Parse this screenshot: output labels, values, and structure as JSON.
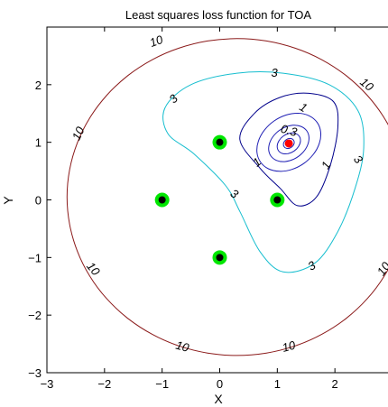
{
  "chart_data": {
    "type": "contour",
    "title": "Least squares loss function for TOA",
    "xlabel": "X",
    "ylabel": "Y",
    "xlim": [
      -3,
      3
    ],
    "ylim": [
      -3,
      3
    ],
    "xticks": [
      "−3",
      "−2",
      "−1",
      "0",
      "1",
      "2"
    ],
    "yticks": [
      "−3",
      "−2",
      "−1",
      "0",
      "1",
      "2"
    ],
    "grid": false,
    "anchors": {
      "x": [
        0,
        -1,
        1,
        0
      ],
      "y": [
        1,
        0,
        0,
        -1
      ],
      "marker_fill": "#000000",
      "marker_edge": "#00e600"
    },
    "estimate": {
      "x": 1.2,
      "y": 0.98,
      "color": "#ff0000"
    },
    "contour_levels": [
      {
        "level": "10",
        "color": "#8b1a1a"
      },
      {
        "level": "3",
        "color": "#17becf"
      },
      {
        "level": "1",
        "color": "#00008b"
      },
      {
        "level": "0.3",
        "color": "#1f1fb4"
      }
    ],
    "contour_labels": [
      {
        "text": "10",
        "x": -1.1,
        "y": 2.75,
        "rot": -20
      },
      {
        "text": "10",
        "x": 2.55,
        "y": 2.0,
        "rot": 40
      },
      {
        "text": "10",
        "x": -2.45,
        "y": 1.15,
        "rot": -65
      },
      {
        "text": "10",
        "x": -2.2,
        "y": -1.2,
        "rot": 50
      },
      {
        "text": "10",
        "x": -0.65,
        "y": -2.55,
        "rot": 15
      },
      {
        "text": "10",
        "x": 1.2,
        "y": -2.55,
        "rot": -15
      },
      {
        "text": "10",
        "x": 2.85,
        "y": -1.2,
        "rot": -55
      },
      {
        "text": "3",
        "x": 0.95,
        "y": 2.2,
        "rot": 0
      },
      {
        "text": "3",
        "x": -0.8,
        "y": 1.75,
        "rot": -45
      },
      {
        "text": "3",
        "x": 0.25,
        "y": 0.1,
        "rot": 35
      },
      {
        "text": "3",
        "x": 1.6,
        "y": -1.15,
        "rot": -30
      },
      {
        "text": "3",
        "x": 2.4,
        "y": 0.7,
        "rot": 50
      },
      {
        "text": "1",
        "x": 1.45,
        "y": 1.6,
        "rot": 30
      },
      {
        "text": "1",
        "x": 0.65,
        "y": 0.65,
        "rot": -40
      },
      {
        "text": "1",
        "x": 1.85,
        "y": 0.6,
        "rot": -60
      },
      {
        "text": "0.3",
        "x": 1.2,
        "y": 1.2,
        "rot": 15
      }
    ]
  }
}
